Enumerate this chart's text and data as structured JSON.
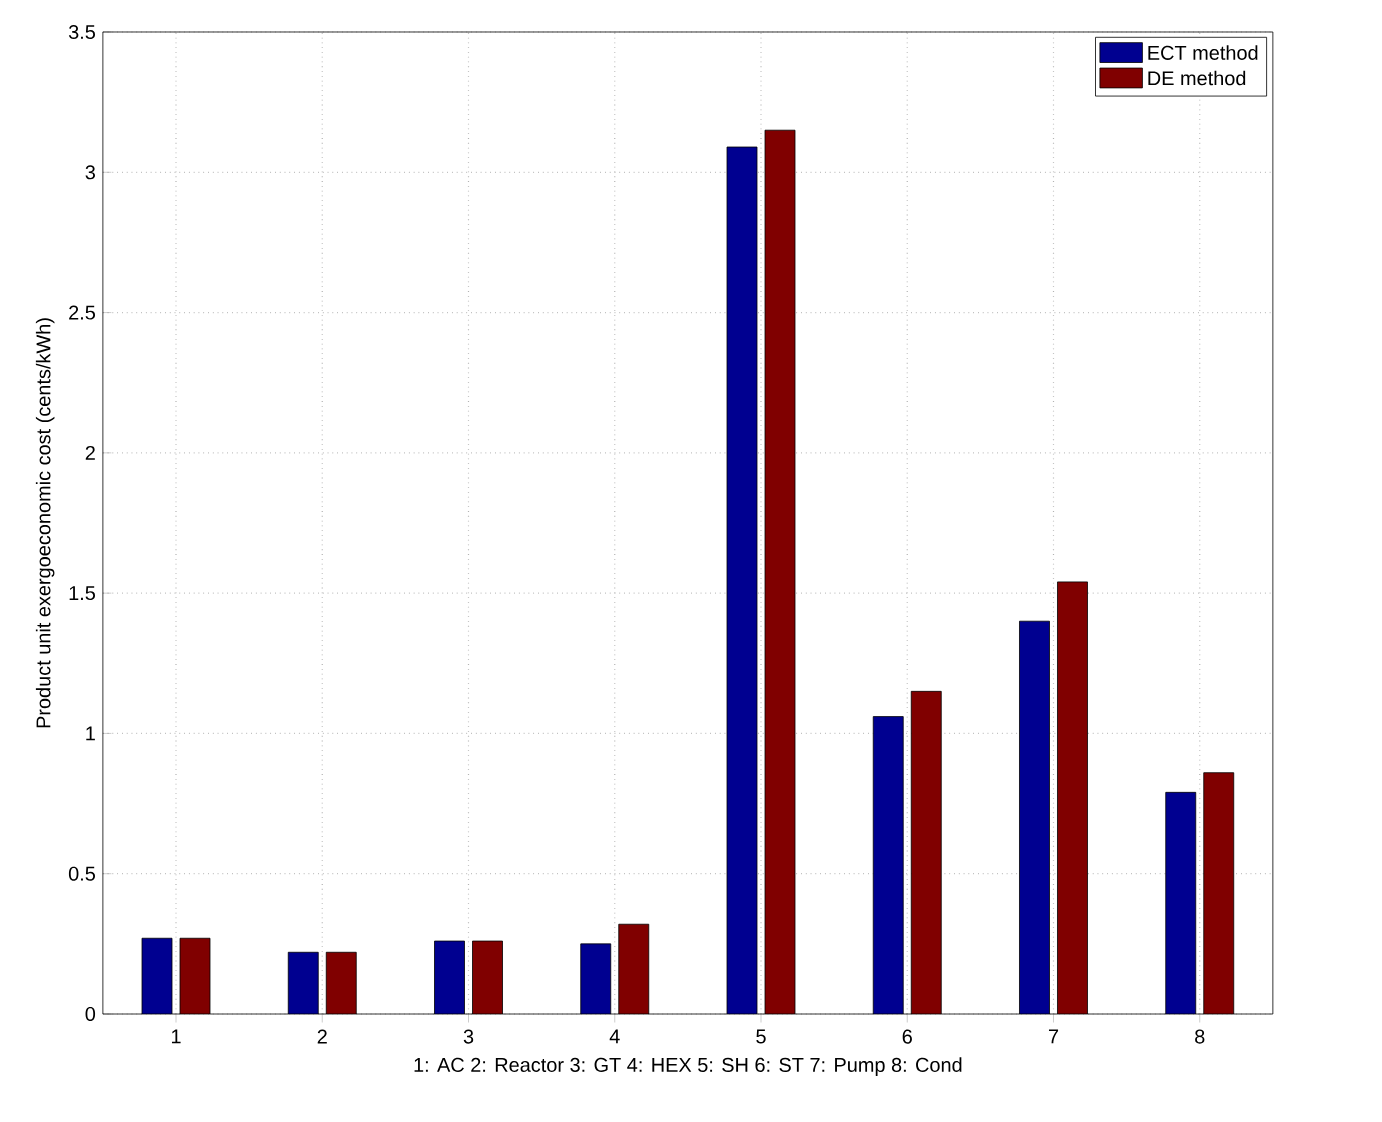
{
  "chart_data": {
    "type": "bar",
    "xlabel": "1: AC 2: Reactor 3: GT 4: HEX 5: SH 6: ST 7: Pump 8: Cond",
    "ylabel": "Product unit exergoeconomic cost (cents/kWh)",
    "categories": [
      "1",
      "2",
      "3",
      "4",
      "5",
      "6",
      "7",
      "8"
    ],
    "series": [
      {
        "name": "ECT method",
        "color": "#000090",
        "values": [
          0.27,
          0.22,
          0.26,
          0.25,
          3.09,
          1.06,
          1.4,
          0.79
        ]
      },
      {
        "name": "DE method",
        "color": "#800000",
        "values": [
          0.27,
          0.22,
          0.26,
          0.32,
          3.15,
          1.15,
          1.54,
          0.86
        ]
      }
    ],
    "ylim": [
      0,
      3.5
    ],
    "yticks": [
      0,
      0.5,
      1,
      1.5,
      2,
      2.5,
      3,
      3.5
    ],
    "grid": true,
    "legend": "top right"
  }
}
